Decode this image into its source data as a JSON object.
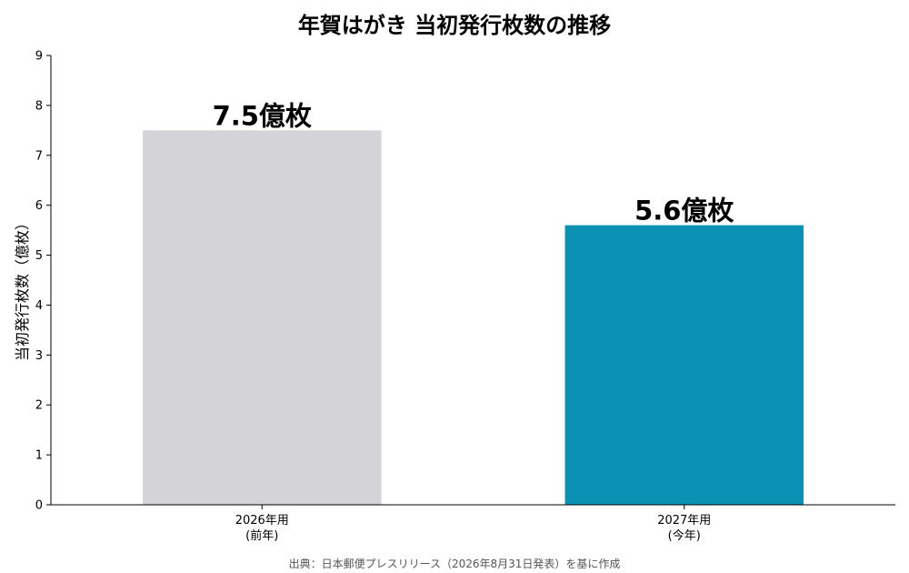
{
  "chart_data": {
    "type": "bar",
    "title": "年賀はがき 当初発行枚数の推移",
    "ylabel": "当初発行枚数（億枚）",
    "xlabel": "",
    "ylim": [
      0,
      9
    ],
    "yticks": [
      0,
      1,
      2,
      3,
      4,
      5,
      6,
      7,
      8,
      9
    ],
    "grid": false,
    "categories": [
      {
        "line1": "2026年用",
        "line2": "(前年)"
      },
      {
        "line1": "2027年用",
        "line2": "(今年)"
      }
    ],
    "values": [
      7.5,
      5.6
    ],
    "data_labels": [
      "7.5億枚",
      "5.6億枚"
    ],
    "colors": [
      "#d3d3d8",
      "#0a91b4"
    ],
    "source": "出典：日本郵便プレスリリース（2026年8月31日発表）を基に作成"
  }
}
